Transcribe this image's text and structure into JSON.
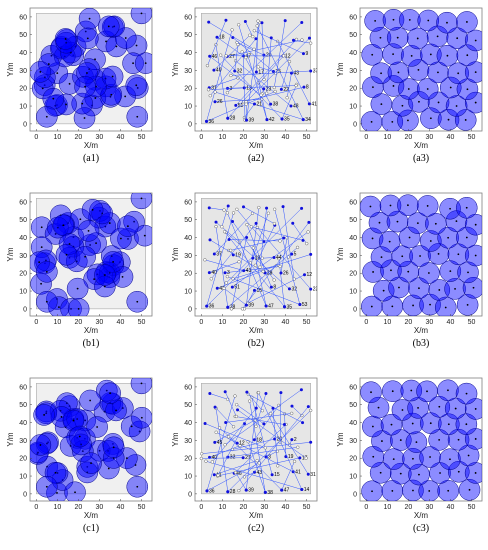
{
  "colors": {
    "coverage_fill": "#0000ff",
    "coverage_stroke": "#00008b",
    "node": "#0000cc",
    "moved_node": "#1010dd",
    "original_node_stroke": "#666666",
    "trajectory": "#3355ff",
    "plot_bg_gray": "#e6e6e6",
    "border": "#808080"
  },
  "chart_data": [
    {
      "id": "a1",
      "label": "(a1)",
      "type": "scatter",
      "variant": "coverage-initial",
      "xlabel": "X/m",
      "ylabel": "Y/m",
      "xlim": [
        -3,
        55
      ],
      "ylim": [
        -4,
        65
      ],
      "xticks": [
        0,
        10,
        20,
        30,
        40,
        50
      ],
      "yticks": [
        0,
        10,
        20,
        30,
        40,
        50,
        60
      ],
      "sensing_radius_m": 5
    },
    {
      "id": "a2",
      "label": "(a2)",
      "type": "scatter",
      "variant": "trajectory",
      "xlabel": "X/m",
      "ylabel": "Y/m",
      "xlim": [
        -3,
        55
      ],
      "ylim": [
        -4,
        65
      ],
      "xticks": [
        0,
        10,
        20,
        30,
        40,
        50
      ],
      "yticks": [
        0,
        10,
        20,
        30,
        40,
        50,
        60
      ],
      "annotated_ids": [
        36,
        28,
        39,
        42,
        35,
        34,
        26,
        51,
        21,
        38,
        48,
        41,
        31,
        3,
        13,
        23,
        22,
        8,
        40,
        32,
        17,
        25,
        43,
        37,
        46,
        27,
        47,
        20,
        12,
        9,
        18
      ]
    },
    {
      "id": "a3",
      "label": "(a3)",
      "type": "scatter",
      "variant": "coverage-final",
      "xlabel": "X/m",
      "ylabel": "Y/m",
      "xlim": [
        -3,
        55
      ],
      "ylim": [
        -4,
        65
      ],
      "xticks": [
        0,
        10,
        20,
        30,
        40,
        50
      ],
      "yticks": [
        0,
        10,
        20,
        30,
        40,
        50,
        60
      ]
    },
    {
      "id": "b1",
      "label": "(b1)",
      "type": "scatter",
      "variant": "coverage-initial",
      "xlabel": "X/m",
      "ylabel": "Y/m",
      "xlim": [
        -3,
        55
      ],
      "ylim": [
        -4,
        65
      ],
      "xticks": [
        0,
        10,
        20,
        30,
        40,
        50
      ],
      "yticks": [
        0,
        10,
        20,
        30,
        40,
        50,
        60
      ]
    },
    {
      "id": "b2",
      "label": "(b2)",
      "type": "scatter",
      "variant": "trajectory",
      "xlabel": "X/m",
      "ylabel": "Y/m",
      "xlim": [
        -3,
        55
      ],
      "ylim": [
        -4,
        65
      ],
      "xticks": [
        0,
        10,
        20,
        30,
        40,
        50
      ],
      "yticks": [
        0,
        10,
        20,
        30,
        40,
        50,
        60
      ],
      "annotated_ids": [
        36,
        28,
        39,
        47,
        35,
        53,
        41,
        51,
        15,
        8,
        32,
        23,
        40,
        3,
        43,
        29,
        26,
        12,
        37,
        19,
        18,
        44,
        5
      ]
    },
    {
      "id": "b3",
      "label": "(b3)",
      "type": "scatter",
      "variant": "coverage-final",
      "xlabel": "X/m",
      "ylabel": "Y/m",
      "xlim": [
        -3,
        55
      ],
      "ylim": [
        -4,
        65
      ],
      "xticks": [
        0,
        10,
        20,
        30,
        40,
        50
      ],
      "yticks": [
        0,
        10,
        20,
        30,
        40,
        50,
        60
      ]
    },
    {
      "id": "c1",
      "label": "(c1)",
      "type": "scatter",
      "variant": "coverage-initial",
      "xlabel": "X/m",
      "ylabel": "Y/m",
      "xlim": [
        -3,
        55
      ],
      "ylim": [
        -4,
        65
      ],
      "xticks": [
        0,
        10,
        20,
        30,
        40,
        50
      ],
      "yticks": [
        0,
        10,
        20,
        30,
        40,
        50,
        60
      ]
    },
    {
      "id": "c2",
      "label": "(c2)",
      "type": "scatter",
      "variant": "trajectory",
      "xlabel": "X/m",
      "ylabel": "Y/m",
      "xlim": [
        -3,
        55
      ],
      "ylim": [
        -4,
        65
      ],
      "xticks": [
        0,
        10,
        20,
        30,
        40,
        50
      ],
      "yticks": [
        0,
        10,
        20,
        30,
        40,
        50,
        60
      ],
      "annotated_ids": [
        36,
        28,
        39,
        38,
        47,
        14,
        11,
        46,
        43,
        15,
        41,
        31,
        40,
        32,
        27,
        3,
        19,
        17,
        45,
        12,
        18,
        20,
        2
      ]
    },
    {
      "id": "c3",
      "label": "(c3)",
      "type": "scatter",
      "variant": "coverage-final",
      "xlabel": "X/m",
      "ylabel": "Y/m",
      "xlim": [
        -3,
        55
      ],
      "ylim": [
        -4,
        65
      ],
      "xticks": [
        0,
        10,
        20,
        30,
        40,
        50
      ],
      "yticks": [
        0,
        10,
        20,
        30,
        40,
        50,
        60
      ]
    }
  ]
}
